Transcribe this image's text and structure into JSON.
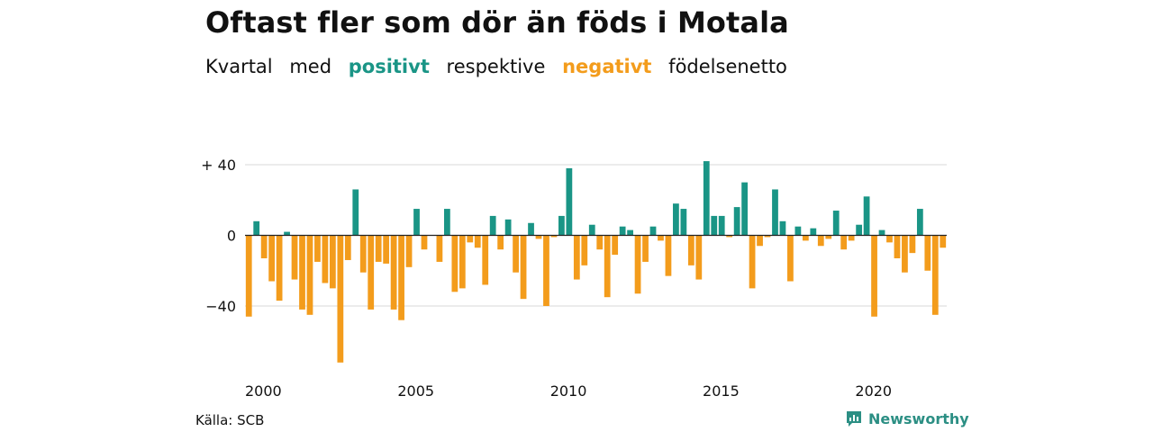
{
  "title": "Oftast fler som dör än föds i Motala",
  "subtitle": {
    "w1": "Kvartal",
    "w2": "med",
    "w3": "positivt",
    "w4": "respektive",
    "w5": "negativt",
    "w6": "födelsenetto"
  },
  "source": "Källa: SCB",
  "logo": "Newsworthy",
  "colors": {
    "positive": "#1a9586",
    "negative": "#f39c1c",
    "grid": "#d9d9d9",
    "zero": "#222222"
  },
  "chart_data": {
    "type": "bar",
    "title": "",
    "xlabel": "",
    "ylabel": "",
    "ylim": [
      -72,
      44
    ],
    "yticks": [
      {
        "value": 40,
        "label": "+ 40"
      },
      {
        "value": 0,
        "label": "0"
      },
      {
        "value": -40,
        "label": "−40"
      }
    ],
    "xticks": [
      "2000",
      "2005",
      "2010",
      "2015",
      "2020"
    ],
    "x_start": "2000 Q1",
    "values": [
      -46,
      8,
      -13,
      -26,
      -37,
      2,
      -25,
      -42,
      -45,
      -15,
      -27,
      -30,
      -72,
      -14,
      26,
      -21,
      -42,
      -15,
      -16,
      -42,
      -48,
      -18,
      15,
      -8,
      0,
      -15,
      15,
      -32,
      -30,
      -4,
      -7,
      -28,
      11,
      -8,
      9,
      -21,
      -36,
      7,
      -2,
      -40,
      -1,
      11,
      38,
      -25,
      -17,
      6,
      -8,
      -35,
      -11,
      5,
      3,
      -33,
      -15,
      5,
      -3,
      -23,
      18,
      15,
      -17,
      -25,
      42,
      11,
      11,
      -1,
      16,
      30,
      -30,
      -6,
      -1,
      26,
      8,
      -26,
      5,
      -3,
      4,
      -6,
      -2,
      14,
      -8,
      -3,
      6,
      22,
      -46,
      3,
      -4,
      -13,
      -21,
      -10,
      15,
      -20,
      -45,
      -7
    ]
  }
}
